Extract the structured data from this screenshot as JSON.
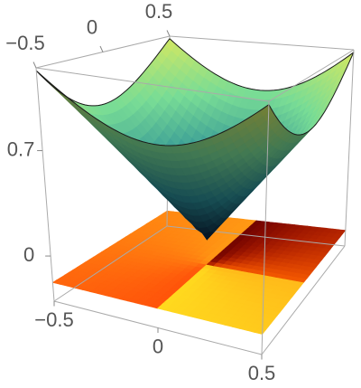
{
  "chart_data": {
    "type": "surface3d",
    "xlim": [
      -0.5,
      0.5
    ],
    "ylim": [
      -0.5,
      0.5
    ],
    "zlim": [
      -0.3,
      1.25
    ],
    "xticks": [
      {
        "value": -0.5,
        "label": "−0.5"
      },
      0,
      0.5
    ],
    "yticks": [
      {
        "value": -0.5,
        "label": "−0.5"
      },
      0,
      0.5
    ],
    "zticks": [
      0,
      0.7
    ]
  }
}
